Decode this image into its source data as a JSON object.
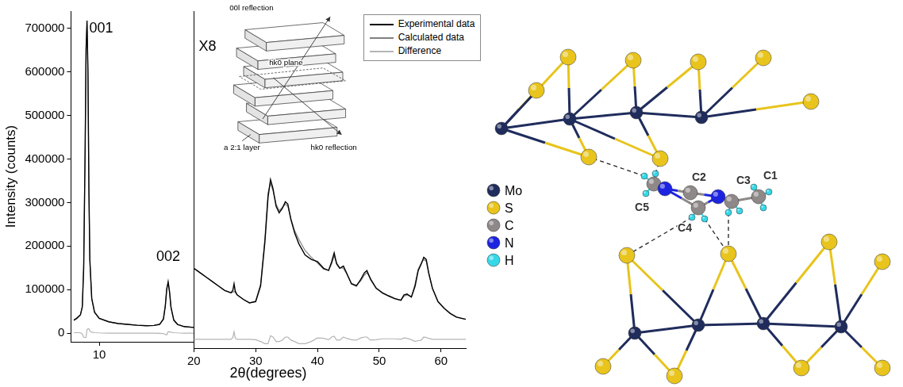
{
  "chart_data": [
    {
      "type": "line",
      "y_label": "Intensity (counts)",
      "xlim": [
        7,
        20
      ],
      "xticks": [
        10
      ],
      "ylim": [
        -20000,
        740000
      ],
      "yticks": [
        0,
        100000,
        200000,
        300000,
        400000,
        500000,
        600000,
        700000
      ],
      "grid": false,
      "x": [
        7.3,
        7.6,
        8.0,
        8.2,
        8.35,
        8.5,
        8.6,
        8.7,
        8.8,
        8.9,
        9.0,
        9.2,
        9.5,
        10,
        11,
        12,
        13,
        14,
        15,
        15.8,
        16.4,
        16.8,
        17.0,
        17.15,
        17.3,
        17.45,
        17.6,
        17.9,
        18.3,
        19,
        20
      ],
      "series": [
        {
          "color": "#000000",
          "values": [
            30000,
            34000,
            42000,
            60000,
            150000,
            420000,
            650000,
            718000,
            600000,
            330000,
            170000,
            80000,
            48000,
            34000,
            26000,
            22000,
            20000,
            18000,
            17000,
            17500,
            20000,
            32000,
            62000,
            100000,
            118000,
            95000,
            60000,
            30000,
            20000,
            15000,
            13000
          ]
        },
        {
          "color": "#808080",
          "values": [
            29000,
            33000,
            41000,
            62000,
            160000,
            430000,
            660000,
            710000,
            590000,
            320000,
            165000,
            78000,
            47000,
            33500,
            26000,
            22000,
            20000,
            18000,
            17000,
            17500,
            20500,
            33000,
            65000,
            104000,
            115000,
            92000,
            58000,
            29000,
            19500,
            15000,
            13000
          ]
        },
        {
          "color": "#b4b4b4",
          "values": [
            1000,
            1000,
            1000,
            -2000,
            -10000,
            -10000,
            -10000,
            8000,
            10000,
            10000,
            5000,
            2000,
            1000,
            500,
            0,
            0,
            0,
            0,
            0,
            0,
            -500,
            -1000,
            -3000,
            -4000,
            3000,
            3000,
            2000,
            1000,
            500,
            0,
            0
          ]
        }
      ],
      "annotations": [
        {
          "text": "001",
          "x": 10.2,
          "y": 700000
        },
        {
          "text": "002",
          "x": 17.3,
          "y": 175000
        }
      ]
    },
    {
      "type": "line",
      "x_label": "2θ(degrees)",
      "xlim": [
        20,
        64
      ],
      "xticks": [
        20,
        30,
        40,
        50,
        60
      ],
      "ylim": [
        -20000,
        740000
      ],
      "grid": false,
      "tick_labels": "x",
      "legend": "upper right",
      "x": [
        20,
        21,
        22,
        23,
        24,
        25,
        26,
        26.3,
        26.5,
        26.7,
        27,
        28,
        29,
        30,
        30.8,
        31.5,
        32,
        32.4,
        32.8,
        33.3,
        33.8,
        34.3,
        34.8,
        35.2,
        35.7,
        36.3,
        37,
        38,
        39,
        40,
        41,
        41.8,
        42.3,
        42.7,
        43.1,
        43.6,
        44.2,
        44.7,
        45.5,
        46.3,
        47,
        47.6,
        48,
        48.6,
        49.5,
        50.5,
        51.5,
        52.5,
        53.5,
        54,
        54.5,
        55.2,
        55.8,
        56.3,
        56.8,
        57.2,
        57.6,
        58,
        58.6,
        59.5,
        60.5,
        61.5,
        62.5,
        64
      ],
      "series": [
        {
          "name": "Experimental data",
          "color": "#000000",
          "values": [
            160000,
            150000,
            140000,
            130000,
            120000,
            110000,
            105000,
            110000,
            125000,
            108000,
            100000,
            90000,
            82000,
            85000,
            120000,
            220000,
            320000,
            360000,
            340000,
            300000,
            285000,
            295000,
            310000,
            305000,
            270000,
            240000,
            215000,
            190000,
            180000,
            175000,
            160000,
            155000,
            175000,
            195000,
            170000,
            160000,
            165000,
            150000,
            125000,
            120000,
            135000,
            150000,
            155000,
            135000,
            115000,
            105000,
            98000,
            92000,
            88000,
            100000,
            102000,
            95000,
            120000,
            155000,
            170000,
            185000,
            180000,
            150000,
            115000,
            85000,
            70000,
            58000,
            50000,
            45000
          ]
        },
        {
          "name": "Calculated data",
          "color": "#808080",
          "values": [
            160000,
            150000,
            140000,
            130000,
            120000,
            110000,
            105000,
            106000,
            108000,
            106000,
            100000,
            90000,
            82000,
            86000,
            125000,
            230000,
            330000,
            352000,
            335000,
            305000,
            290000,
            297000,
            305000,
            300000,
            272000,
            245000,
            225000,
            200000,
            185000,
            172000,
            158000,
            156000,
            170000,
            188000,
            172000,
            162000,
            160000,
            148000,
            126000,
            122000,
            132000,
            145000,
            150000,
            137000,
            116000,
            104000,
            97000,
            91000,
            88000,
            97000,
            100000,
            96000,
            125000,
            158000,
            172000,
            180000,
            176000,
            148000,
            115000,
            85000,
            70000,
            58000,
            50000,
            45000
          ]
        },
        {
          "name": "Difference",
          "color": "#b4b4b4",
          "values": [
            0,
            0,
            0,
            0,
            0,
            0,
            0,
            4000,
            17000,
            2000,
            0,
            0,
            0,
            -1000,
            -5000,
            -10000,
            -10000,
            8000,
            5000,
            -5000,
            -5000,
            -2000,
            5000,
            5000,
            -2000,
            -5000,
            -10000,
            -10000,
            -5000,
            3000,
            2000,
            -1000,
            5000,
            7000,
            -2000,
            -2000,
            5000,
            2000,
            -1000,
            -2000,
            3000,
            5000,
            5000,
            -2000,
            -1000,
            1000,
            1000,
            1000,
            0,
            3000,
            2000,
            -1000,
            -5000,
            -3000,
            -2000,
            5000,
            4000,
            2000,
            0,
            0,
            0,
            0,
            0,
            0
          ]
        }
      ],
      "annotations": [
        {
          "text": "X8",
          "x": 22.2,
          "y": 660000
        }
      ]
    }
  ],
  "inset": {
    "labels": [
      "00l reflection",
      "hk0 plane",
      "hk0 reflection",
      "a 2:1 layer"
    ]
  },
  "structure": {
    "legend": [
      {
        "label": "Mo",
        "color": "#1f2c5c"
      },
      {
        "label": "S",
        "color": "#e8c41c"
      },
      {
        "label": "C",
        "color": "#8e8888"
      },
      {
        "label": "N",
        "color": "#1c24e0"
      },
      {
        "label": "H",
        "color": "#35d8e8"
      }
    ],
    "atom_labels": [
      "C5",
      "C2",
      "C3",
      "C1",
      "C4"
    ]
  }
}
